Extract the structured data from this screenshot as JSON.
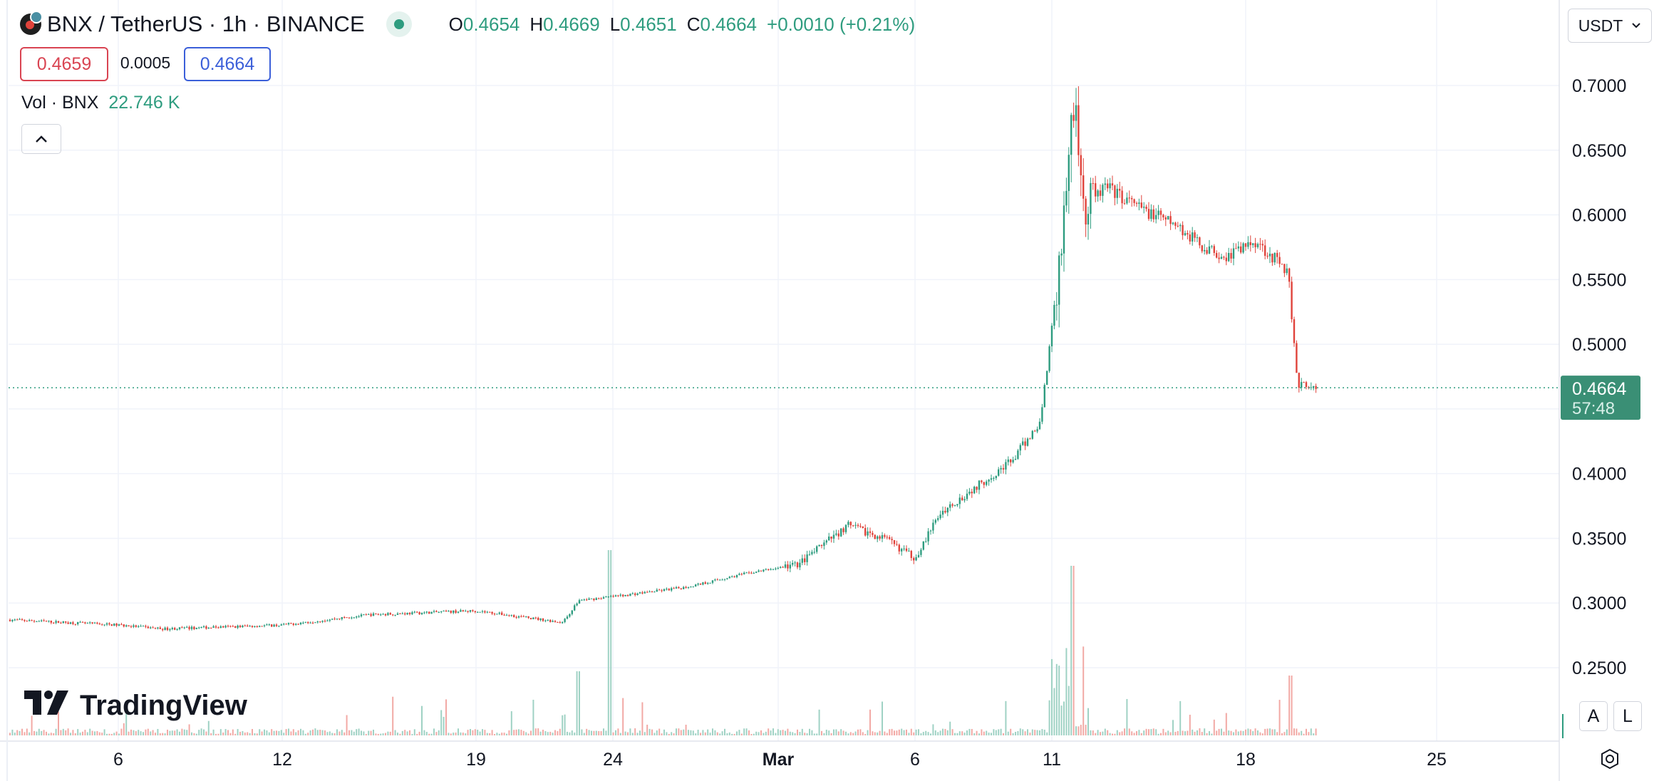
{
  "header": {
    "symbol": "BNX / TetherUS · 1h · BINANCE",
    "ohlc": {
      "o_label": "O",
      "o": "0.4654",
      "h_label": "H",
      "h": "0.4669",
      "l_label": "L",
      "l": "0.4651",
      "c_label": "C",
      "c": "0.4664",
      "change": "+0.0010 (+0.21%)"
    },
    "bid": "0.4659",
    "spread": "0.0005",
    "ask": "0.4664"
  },
  "volume_legend": {
    "label": "Vol · BNX",
    "value": "22.746 K"
  },
  "currency_select": "USDT",
  "brand": "TradingView",
  "price_tag": {
    "price": "0.4664",
    "countdown": "57:48"
  },
  "buttons": {
    "auto": "A",
    "log": "L"
  },
  "colors": {
    "up": "#2e9c7f",
    "down": "#e0433b",
    "grid": "#f0f3fa",
    "price_tag": "#3a8f75"
  },
  "chart_data": {
    "type": "candlestick",
    "interval": "1h",
    "ylim": [
      0.235,
      0.745
    ],
    "y_ticks": [
      "0.7000",
      "0.6500",
      "0.6000",
      "0.5500",
      "0.5000",
      "0.4500",
      "0.4000",
      "0.3500",
      "0.3000",
      "0.2500"
    ],
    "x_ticks": [
      "6",
      "12",
      "19",
      "24",
      "Mar",
      "6",
      "11",
      "18",
      "25"
    ],
    "last_price": 0.4664,
    "price_path": [
      {
        "t": "Feb 3",
        "close": 0.287
      },
      {
        "t": "Feb 6",
        "close": 0.283
      },
      {
        "t": "Feb 8",
        "close": 0.28
      },
      {
        "t": "Feb 12",
        "close": 0.283
      },
      {
        "t": "Feb 15",
        "close": 0.291
      },
      {
        "t": "Feb 19",
        "close": 0.294
      },
      {
        "t": "Feb 22",
        "close": 0.285
      },
      {
        "t": "Feb 23",
        "close": 0.302
      },
      {
        "t": "Feb 24",
        "close": 0.305
      },
      {
        "t": "Feb 27",
        "close": 0.312
      },
      {
        "t": "Feb 29",
        "close": 0.322
      },
      {
        "t": "Mar 2",
        "close": 0.33
      },
      {
        "t": "Mar 4",
        "close": 0.36
      },
      {
        "t": "Mar 5",
        "close": 0.35
      },
      {
        "t": "Mar 6",
        "close": 0.335
      },
      {
        "t": "Mar 7",
        "close": 0.37
      },
      {
        "t": "Mar 8",
        "close": 0.39
      },
      {
        "t": "Mar 9",
        "close": 0.41
      },
      {
        "t": "Mar 10",
        "close": 0.44
      },
      {
        "t": "Mar 11",
        "close": 0.56
      },
      {
        "t": "Mar 12",
        "close": 0.7
      },
      {
        "t": "Mar 12 ",
        "close": 0.6
      },
      {
        "t": "Mar 13",
        "close": 0.622
      },
      {
        "t": "Mar 14",
        "close": 0.605
      },
      {
        "t": "Mar 15",
        "close": 0.592
      },
      {
        "t": "Mar 16",
        "close": 0.575
      },
      {
        "t": "Mar 17",
        "close": 0.568
      },
      {
        "t": "Mar 18",
        "close": 0.58
      },
      {
        "t": "Mar 19",
        "close": 0.556
      },
      {
        "t": "Mar 19 ",
        "close": 0.47
      },
      {
        "t": "Mar 20",
        "close": 0.4664
      }
    ]
  }
}
